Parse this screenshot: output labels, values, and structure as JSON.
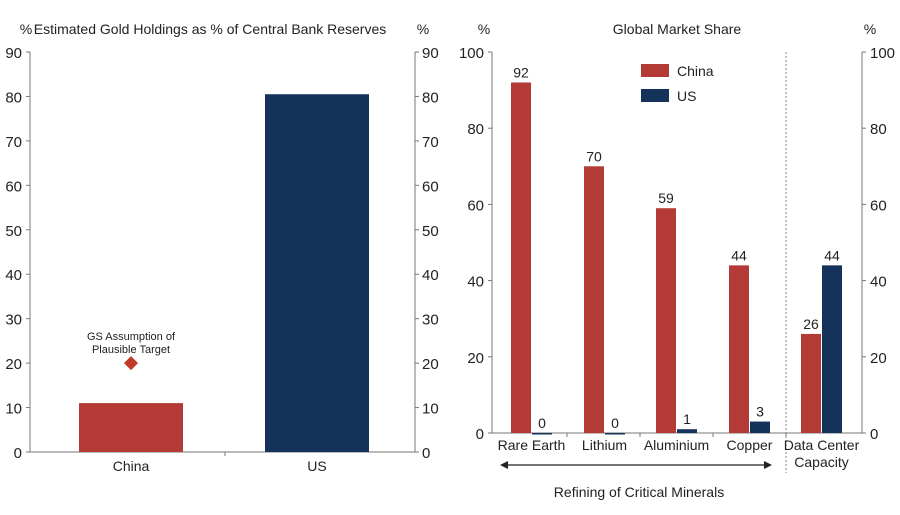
{
  "chart_data": [
    {
      "type": "bar",
      "title": "Estimated Gold Holdings as % of Central Bank Reserves",
      "ylabel_left": "%",
      "ylabel_right": "%",
      "ylim": [
        0,
        90
      ],
      "yticks": [
        0,
        10,
        20,
        30,
        40,
        50,
        60,
        70,
        80,
        90
      ],
      "categories": [
        "China",
        "US"
      ],
      "values": [
        11,
        80.5
      ],
      "bar_colors": [
        "#b33a35",
        "#15325a"
      ],
      "annotation": {
        "label_line1": "GS Assumption of",
        "label_line2": "Plausible Target",
        "category": "China",
        "value": 20,
        "marker": "diamond",
        "color": "#c0392b"
      },
      "grid": false
    },
    {
      "type": "bar",
      "title": "Global Market Share",
      "ylabel_left": "%",
      "ylabel_right": "%",
      "ylim": [
        0,
        100
      ],
      "yticks": [
        0,
        20,
        40,
        60,
        80,
        100
      ],
      "categories": [
        "Rare Earth",
        "Lithium",
        "Aluminium",
        "Copper",
        "Data Center Capacity"
      ],
      "category_label_lines": [
        [
          "Rare Earth"
        ],
        [
          "Lithium"
        ],
        [
          "Aluminium"
        ],
        [
          "Copper"
        ],
        [
          "Data Center",
          "Capacity"
        ]
      ],
      "series": [
        {
          "name": "China",
          "values": [
            92,
            70,
            59,
            44,
            26
          ],
          "color": "#b33a35"
        },
        {
          "name": "US",
          "values": [
            0,
            0,
            1,
            3,
            44
          ],
          "color": "#15325a"
        }
      ],
      "group_label": "Refining of Critical Minerals",
      "legend": "top-center",
      "grid": false
    }
  ]
}
